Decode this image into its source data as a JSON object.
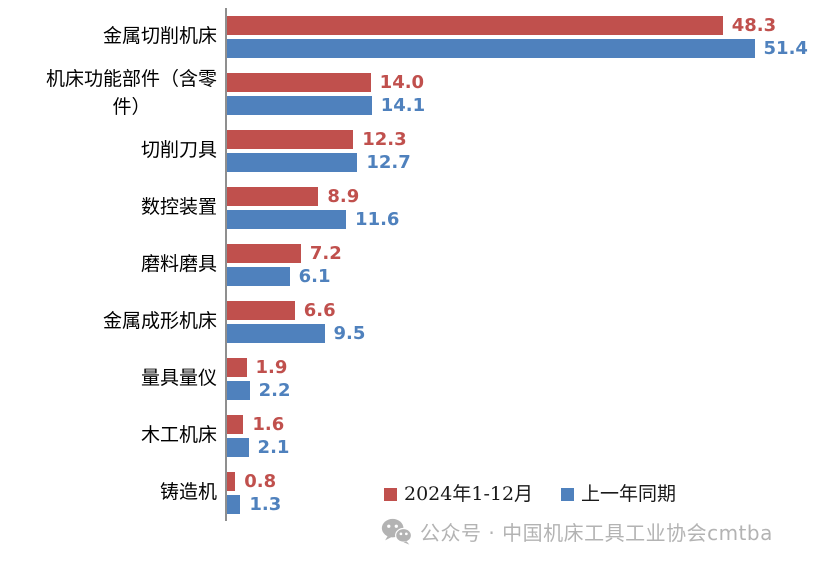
{
  "chart_data": {
    "type": "bar",
    "orientation": "horizontal",
    "categories": [
      "金属切削机床",
      "机床功能部件（含零\n件）",
      "切削刀具",
      "数控装置",
      "磨料磨具",
      "金属成形机床",
      "量具量仪",
      "木工机床",
      "铸造机"
    ],
    "series": [
      {
        "name": "2024年1-12月",
        "color": "#c0504d",
        "values": [
          48.3,
          14.0,
          12.3,
          8.9,
          7.2,
          6.6,
          1.9,
          1.6,
          0.8
        ]
      },
      {
        "name": "上一年同期",
        "color": "#4f81bd",
        "values": [
          51.4,
          14.1,
          12.7,
          11.6,
          6.1,
          9.5,
          2.2,
          2.1,
          1.3
        ]
      }
    ],
    "value_labels": true,
    "value_format": "one_decimal",
    "xlim": [
      0,
      57
    ],
    "grid": false,
    "axis_color": "#8f8f8f",
    "legend_position": "bottom-right"
  },
  "footer": {
    "icon": "wechat-icon",
    "text": "公众号 · 中国机床工具工业协会cmtba",
    "color": "#b3b3b3"
  }
}
